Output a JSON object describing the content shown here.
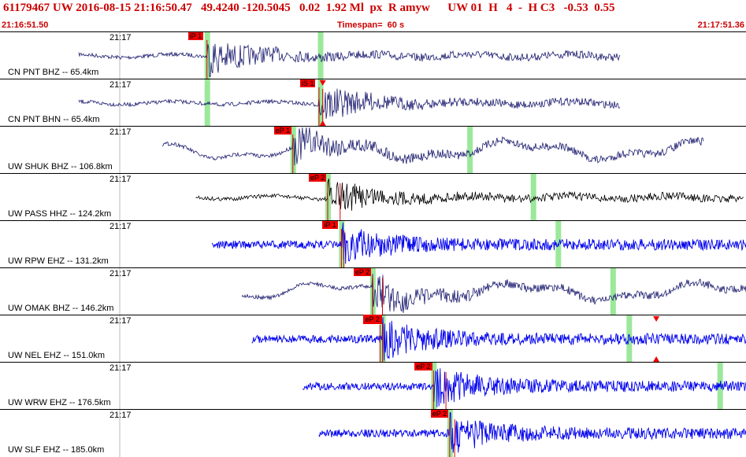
{
  "header": {
    "event_line": "61179467 UW 2016-08-15 21:16:50.47   49.4240 -120.5045   0.02  1.92 Ml  px  R amyw      UW 01  H   4  -  H C3   -0.53  0.55",
    "start_time": "21:16:51.50",
    "timespan": "Timespan=  60 s",
    "end_time": "21:17:51.36"
  },
  "colors": {
    "header_text": "#cc0000",
    "pick_flag": "#ee0000",
    "window_marker": "#9be89b",
    "navy_trace": "#1a1a6e",
    "blue_trace": "#0000ee",
    "black_trace": "#000000"
  },
  "traces": [
    {
      "label": "CN PNT BHZ -- 65.4km",
      "minute_label": "21:17",
      "color": "navy",
      "start_s": 0,
      "end_s": 43.5,
      "pick": {
        "label": "iP 1",
        "time_s": 10.3,
        "hollow": false
      },
      "windows_s": [
        10.3,
        19.4
      ],
      "arrivals": [],
      "triangles": []
    },
    {
      "label": "CN PNT BHN -- 65.4km",
      "minute_label": "21:17",
      "color": "navy",
      "start_s": 0,
      "end_s": 43.5,
      "pick": {
        "label": "iS 1",
        "time_s": 19.3,
        "hollow": false
      },
      "windows_s": [
        10.3,
        19.4
      ],
      "arrivals": [
        19.6
      ],
      "triangles": [
        {
          "time_s": 19.6,
          "edge": "top"
        },
        {
          "time_s": 19.6,
          "edge": "bottom"
        }
      ]
    },
    {
      "label": "UW SHUK BHZ -- 106.8km",
      "minute_label": "21:17",
      "color": "navy",
      "start_s": 6.7,
      "end_s": 50.2,
      "pick": {
        "label": "eP 1",
        "time_s": 17.2,
        "hollow": false
      },
      "windows_s": [
        17.2,
        31.4
      ],
      "arrivals": [],
      "triangles": []
    },
    {
      "label": "UW PASS HHZ -- 124.2km",
      "minute_label": "21:17",
      "color": "black",
      "start_s": 9.4,
      "end_s": 53.4,
      "pick": {
        "label": "eP 2",
        "time_s": 20.0,
        "hollow": false
      },
      "windows_s": [
        20.0,
        36.5
      ],
      "arrivals": [
        21.0
      ],
      "triangles": []
    },
    {
      "label": "UW RPW EHZ -- 131.2km",
      "minute_label": "21:17",
      "color": "blue",
      "start_s": 10.7,
      "end_s": 54.7,
      "pick": {
        "label": "iP 1",
        "time_s": 21.1,
        "hollow": false
      },
      "windows_s": [
        21.1,
        38.5
      ],
      "arrivals": [
        21.3
      ],
      "triangles": []
    },
    {
      "label": "UW OMAK BHZ -- 146.2km",
      "minute_label": "21:17",
      "color": "navy",
      "start_s": 13.1,
      "end_s": 57.1,
      "pick": {
        "label": "eP 2",
        "time_s": 23.6,
        "hollow": false
      },
      "windows_s": [
        23.6,
        42.9
      ],
      "arrivals": [
        24.4
      ],
      "triangles": []
    },
    {
      "label": "UW NEL EHZ -- 151.0km",
      "minute_label": "21:17",
      "color": "blue",
      "start_s": 13.9,
      "end_s": 57.9,
      "pick": {
        "label": "eP 2",
        "time_s": 24.4,
        "hollow": true
      },
      "windows_s": [
        24.4,
        44.2
      ],
      "arrivals": [
        24.2
      ],
      "triangles": [
        {
          "time_s": 46.4,
          "edge": "top"
        },
        {
          "time_s": 46.4,
          "edge": "bottom"
        }
      ]
    },
    {
      "label": "UW WRW EHZ -- 176.5km",
      "minute_label": "21:17",
      "color": "blue",
      "start_s": 18.0,
      "end_s": 62.0,
      "pick": {
        "label": "eP 2",
        "time_s": 28.5,
        "hollow": false
      },
      "windows_s": [
        28.5,
        51.5
      ],
      "arrivals": [
        29.5
      ],
      "triangles": []
    },
    {
      "label": "UW SLF EHZ -- 185.0km",
      "minute_label": "21:17",
      "color": "blue",
      "start_s": 19.3,
      "end_s": 63.3,
      "pick": {
        "label": "eP 2",
        "time_s": 29.8,
        "hollow": false
      },
      "windows_s": [
        29.8,
        53.9
      ],
      "arrivals": [
        30.2
      ],
      "triangles": []
    }
  ]
}
